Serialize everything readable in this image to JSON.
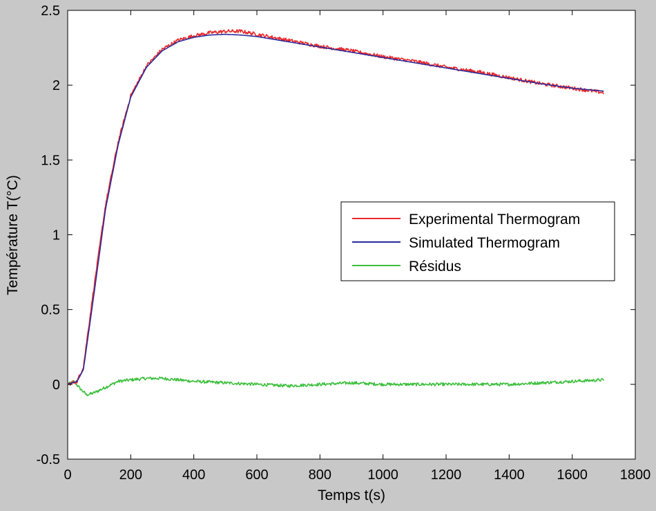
{
  "chart_data": {
    "type": "line",
    "xlabel": "Temps t(s)",
    "ylabel": "Température T(°C)",
    "xlim": [
      0,
      1800
    ],
    "ylim": [
      -0.5,
      2.5
    ],
    "xticks": [
      0,
      200,
      400,
      600,
      800,
      1000,
      1200,
      1400,
      1600,
      1800
    ],
    "yticks": [
      -0.5,
      0,
      0.5,
      1,
      1.5,
      2,
      2.5
    ],
    "xtick_labels": [
      "0",
      "200",
      "400",
      "600",
      "800",
      "1000",
      "1200",
      "1400",
      "1600",
      "1800"
    ],
    "ytick_labels": [
      "-0.5",
      "0",
      "0.5",
      "1",
      "1.5",
      "2",
      "2.5"
    ],
    "grid": false,
    "legend_position": "center-right",
    "series": [
      {
        "name": "Experimental Thermogram",
        "color": "#e8282a",
        "noise": 0.012,
        "x": [
          0,
          30,
          50,
          80,
          120,
          160,
          200,
          250,
          300,
          350,
          400,
          450,
          500,
          550,
          600,
          700,
          800,
          900,
          1000,
          1100,
          1200,
          1300,
          1400,
          1500,
          1600,
          1700
        ],
        "y": [
          0.0,
          0.02,
          0.12,
          0.6,
          1.2,
          1.62,
          1.93,
          2.13,
          2.24,
          2.3,
          2.33,
          2.35,
          2.36,
          2.36,
          2.34,
          2.3,
          2.26,
          2.23,
          2.19,
          2.16,
          2.12,
          2.09,
          2.05,
          2.01,
          1.98,
          1.95
        ]
      },
      {
        "name": "Simulated Thermogram",
        "color": "#2a2a9a",
        "noise": 0,
        "x": [
          0,
          30,
          50,
          80,
          120,
          160,
          200,
          250,
          300,
          350,
          400,
          450,
          500,
          550,
          600,
          700,
          800,
          900,
          1000,
          1100,
          1200,
          1300,
          1400,
          1500,
          1600,
          1700
        ],
        "y": [
          0.0,
          0.02,
          0.1,
          0.55,
          1.17,
          1.6,
          1.92,
          2.12,
          2.23,
          2.29,
          2.32,
          2.335,
          2.34,
          2.335,
          2.325,
          2.29,
          2.255,
          2.22,
          2.185,
          2.15,
          2.115,
          2.08,
          2.045,
          2.01,
          1.98,
          1.96
        ]
      },
      {
        "name": "Résidus",
        "color": "#3cbf3c",
        "noise": 0.01,
        "x": [
          0,
          20,
          40,
          60,
          80,
          120,
          160,
          200,
          250,
          300,
          350,
          400,
          500,
          600,
          700,
          800,
          900,
          1000,
          1100,
          1200,
          1300,
          1400,
          1500,
          1600,
          1700
        ],
        "y": [
          0.0,
          0.02,
          -0.03,
          -0.07,
          -0.06,
          -0.02,
          0.02,
          0.03,
          0.04,
          0.04,
          0.03,
          0.02,
          0.01,
          0.0,
          -0.01,
          0.0,
          0.01,
          0.0,
          0.0,
          0.0,
          0.0,
          0.0,
          0.01,
          0.02,
          0.03
        ]
      }
    ]
  }
}
